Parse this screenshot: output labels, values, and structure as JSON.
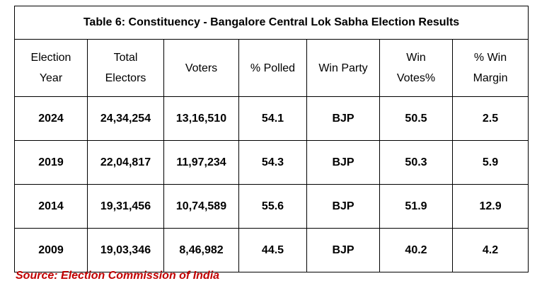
{
  "table": {
    "title": "Table 6: Constituency - Bangalore Central Lok Sabha Election Results",
    "headers": [
      {
        "line1": "Election",
        "line2": "Year"
      },
      {
        "line1": "Total",
        "line2": "Electors"
      },
      {
        "line1": "Voters",
        "line2": ""
      },
      {
        "line1": "% Polled",
        "line2": ""
      },
      {
        "line1": "Win Party",
        "line2": ""
      },
      {
        "line1": "Win",
        "line2": "Votes%"
      },
      {
        "line1": "% Win",
        "line2": "Margin"
      }
    ],
    "rows": [
      [
        "2024",
        "24,34,254",
        "13,16,510",
        "54.1",
        "BJP",
        "50.5",
        "2.5"
      ],
      [
        "2019",
        "22,04,817",
        "11,97,234",
        "54.3",
        "BJP",
        "50.3",
        "5.9"
      ],
      [
        "2014",
        "19,31,456",
        "10,74,589",
        "55.6",
        "BJP",
        "51.9",
        "12.9"
      ],
      [
        "2009",
        "19,03,346",
        "8,46,982",
        "44.5",
        "BJP",
        "40.2",
        "4.2"
      ]
    ]
  },
  "source": {
    "text": "Source: Election Commission of India",
    "color": "#c00000"
  }
}
